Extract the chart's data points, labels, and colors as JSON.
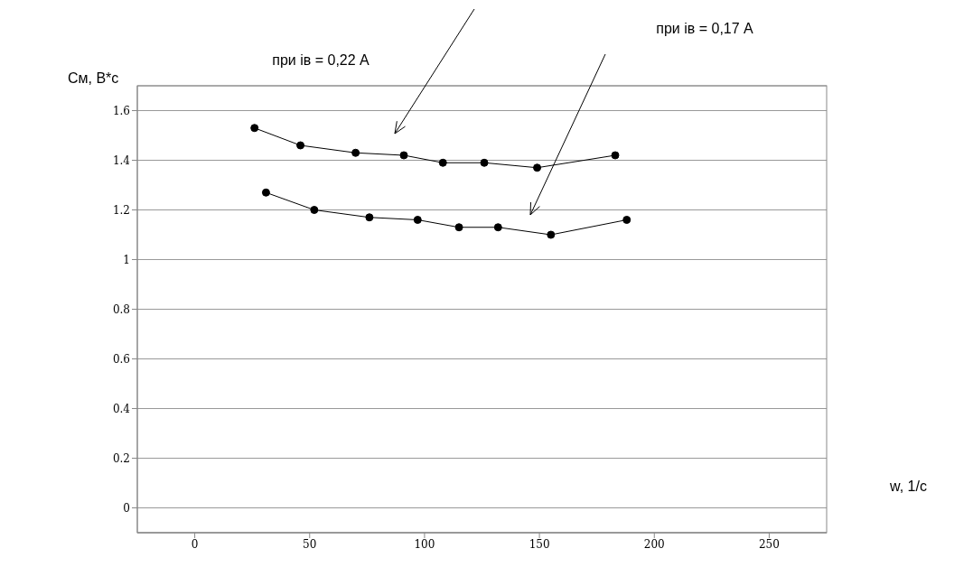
{
  "chart_data": {
    "type": "scatter",
    "xlabel": "w, 1/с",
    "ylabel": "См, В*с",
    "xlim": [
      -25,
      275
    ],
    "xticks": [
      0,
      50,
      100,
      150,
      200,
      250
    ],
    "ylim": [
      -0.1,
      1.7
    ],
    "yticks": [
      0,
      0.2,
      0.4,
      0.6,
      0.8,
      1,
      1.2,
      1.4,
      1.6
    ],
    "grid": "y",
    "marker": "circle",
    "line_style": "solid",
    "series": [
      {
        "type": "line",
        "color": "#000000",
        "x": [
          26,
          46,
          70,
          91,
          108,
          126,
          149,
          183
        ],
        "values": [
          1.53,
          1.46,
          1.43,
          1.42,
          1.39,
          1.39,
          1.37,
          1.42
        ]
      },
      {
        "type": "line",
        "color": "#000000",
        "x": [
          31,
          52,
          76,
          97,
          115,
          132,
          155,
          188
        ],
        "values": [
          1.27,
          1.2,
          1.17,
          1.16,
          1.13,
          1.13,
          1.1,
          1.16
        ]
      }
    ],
    "annotations": [
      "при ів = 0,22 А",
      "при ів = 0,17 А"
    ]
  }
}
